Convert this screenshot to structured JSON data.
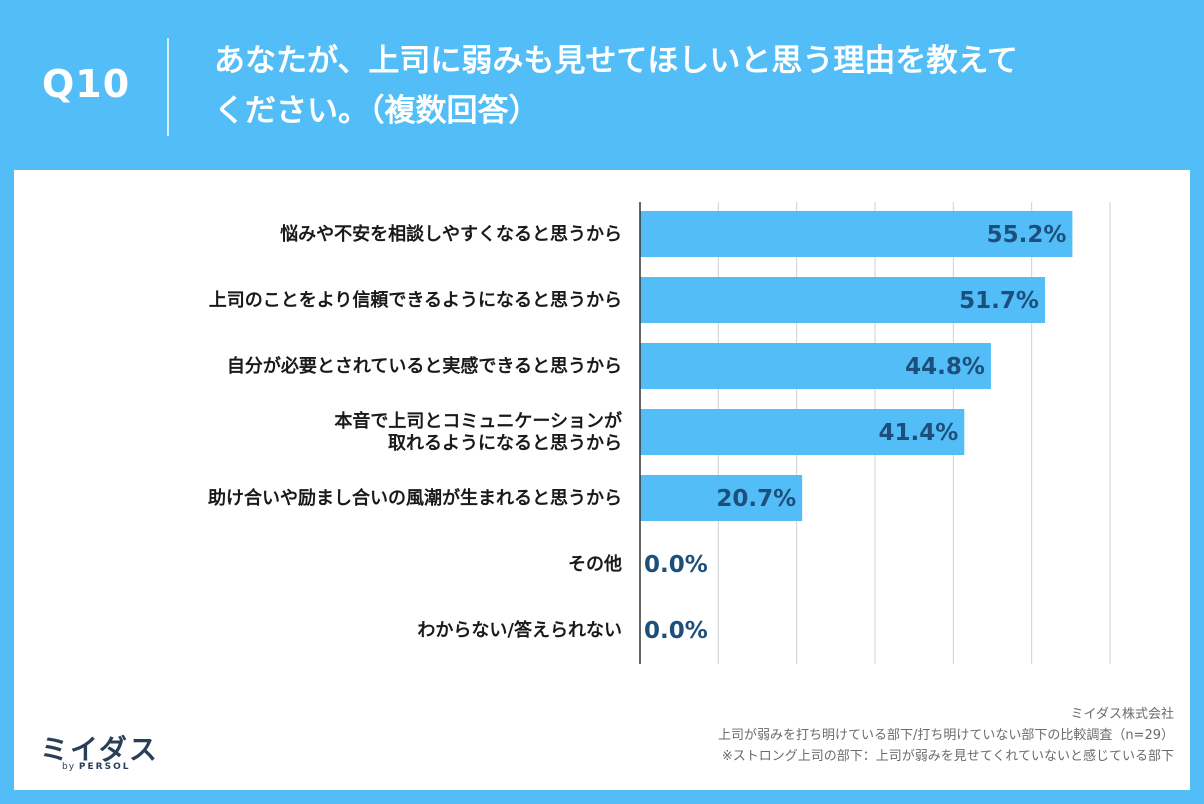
{
  "header": {
    "question_number": "Q10",
    "title_line1": "あなたが、上司に弱みも見せてほしいと思う理由を教えて",
    "title_line2": "ください。（複数回答）"
  },
  "chart_data": {
    "type": "bar",
    "orientation": "horizontal",
    "categories": [
      [
        "悩みや不安を相談しやすくなると思うから"
      ],
      [
        "上司のことをより信頼できるようになると思うから"
      ],
      [
        "自分が必要とされていると実感できると思うから"
      ],
      [
        "本音で上司とコミュニケーションが",
        "取れるようになると思うから"
      ],
      [
        "助け合いや励まし合いの風潮が生まれると思うから"
      ],
      [
        "その他"
      ],
      [
        "わからない/答えられない"
      ]
    ],
    "values": [
      55.2,
      51.7,
      44.8,
      41.4,
      20.7,
      0.0,
      0.0
    ],
    "value_labels": [
      "55.2%",
      "51.7%",
      "44.8%",
      "41.4%",
      "20.7%",
      "0.0%",
      "0.0%"
    ],
    "xlim": [
      0,
      60
    ],
    "grid": true,
    "bar_color": "#52bdf6",
    "label_color": "#1d4f7c"
  },
  "footer": {
    "logo_text": "ミイダス",
    "logo_sub_by": "by",
    "logo_sub_brand": "PERSOL",
    "company": "ミイダス株式会社",
    "survey": "上司が弱みを打ち明けている部下/打ち明けていない部下の比較調査（n=29）",
    "note": "※ストロング上司の部下：上司が弱みを見せてくれていないと感じている部下"
  }
}
